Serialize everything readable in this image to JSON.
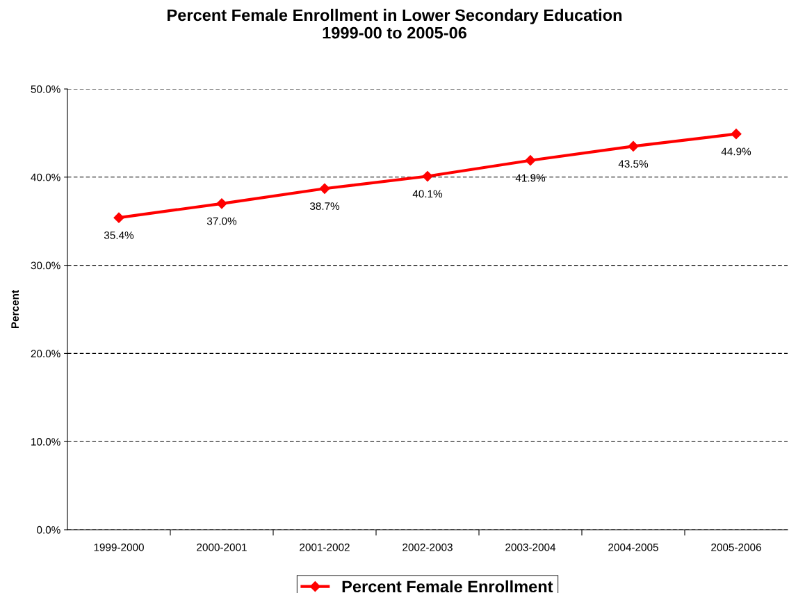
{
  "chart_data": {
    "type": "line",
    "title": "Percent Female Enrollment in Lower Secondary Education\n1999-00 to 2005-06",
    "ylabel": "Percent",
    "categories": [
      "1999-2000",
      "2000-2001",
      "2001-2002",
      "2002-2003",
      "2003-2004",
      "2004-2005",
      "2005-2006"
    ],
    "series": [
      {
        "name": "Percent Female Enrollment",
        "color": "#ff0000",
        "values": [
          35.4,
          37.0,
          38.7,
          40.1,
          41.9,
          43.5,
          44.9
        ],
        "value_labels": [
          "35.4%",
          "37.0%",
          "38.7%",
          "40.1%",
          "41.9%",
          "43.5%",
          "44.9%"
        ]
      }
    ],
    "ylim": [
      0,
      50
    ],
    "yticks": [
      {
        "value": 0,
        "label": "0.0%"
      },
      {
        "value": 10,
        "label": "10.0%"
      },
      {
        "value": 20,
        "label": "20.0%"
      },
      {
        "value": 30,
        "label": "30.0%"
      },
      {
        "value": 40,
        "label": "40.0%"
      },
      {
        "value": 50,
        "label": "50.0%"
      }
    ],
    "grid": "y",
    "legend": "bottom",
    "marker": "diamond",
    "line_style": "solid"
  }
}
